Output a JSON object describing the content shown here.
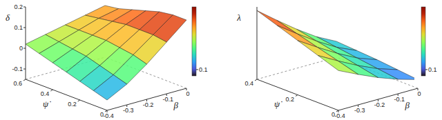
{
  "chart_data": [
    {
      "type": "surface",
      "x_label": "β",
      "y_label": "ψ̇",
      "z_label": "δ",
      "x": [
        -0.4,
        -0.3,
        -0.2,
        -0.1,
        0
      ],
      "y": [
        0,
        0.1,
        0.2,
        0.3,
        0.4,
        0.5,
        0.6
      ],
      "z": [
        [
          -0.1,
          -0.05,
          0.02,
          0.1,
          0.18
        ],
        [
          -0.08,
          -0.03,
          0.04,
          0.11,
          0.18
        ],
        [
          -0.06,
          -0.01,
          0.05,
          0.11,
          0.17
        ],
        [
          -0.04,
          0.01,
          0.06,
          0.11,
          0.15
        ],
        [
          -0.02,
          0.02,
          0.06,
          0.1,
          0.13
        ],
        [
          0.0,
          0.03,
          0.06,
          0.09,
          0.11
        ],
        [
          0.02,
          0.04,
          0.06,
          0.08,
          0.1
        ]
      ],
      "xlim": [
        -0.4,
        0
      ],
      "ylim": [
        0,
        0.6
      ],
      "zlim": [
        -0.15,
        0.2
      ],
      "xticks": [
        -0.4,
        -0.3,
        -0.2,
        -0.1,
        0
      ],
      "yticks": [
        0,
        0.2,
        0.4,
        0.6
      ],
      "zticks": [
        -0.1,
        0,
        0.1,
        0.2
      ],
      "colorbar": {
        "lim": [
          0.09,
          0.2
        ],
        "ticks": [
          0.1
        ]
      }
    },
    {
      "type": "surface",
      "x_label": "β",
      "y_label": "ψ̇",
      "z_label": "λ",
      "x": [
        -0.4,
        -0.3,
        -0.2,
        -0.1,
        0
      ],
      "y": [
        0,
        0.1,
        0.2,
        0.3,
        0.4
      ],
      "z": [
        [
          0.55,
          0.42,
          0.3,
          0.2,
          0.12
        ],
        [
          0.65,
          0.5,
          0.36,
          0.24,
          0.15
        ],
        [
          0.75,
          0.58,
          0.42,
          0.28,
          0.18
        ],
        [
          0.85,
          0.66,
          0.48,
          0.32,
          0.2
        ],
        [
          0.95,
          0.74,
          0.54,
          0.36,
          0.22
        ]
      ],
      "xlim": [
        -0.4,
        0
      ],
      "ylim": [
        0,
        0.4
      ],
      "zlim": [
        0,
        1
      ],
      "xticks": [
        -0.4,
        -0.3,
        -0.2,
        -0.1,
        0
      ],
      "yticks": [
        0,
        0.2,
        0.4
      ],
      "colorbar": {
        "lim": [
          0.09,
          0.2
        ],
        "ticks": [
          0.1
        ]
      }
    }
  ]
}
